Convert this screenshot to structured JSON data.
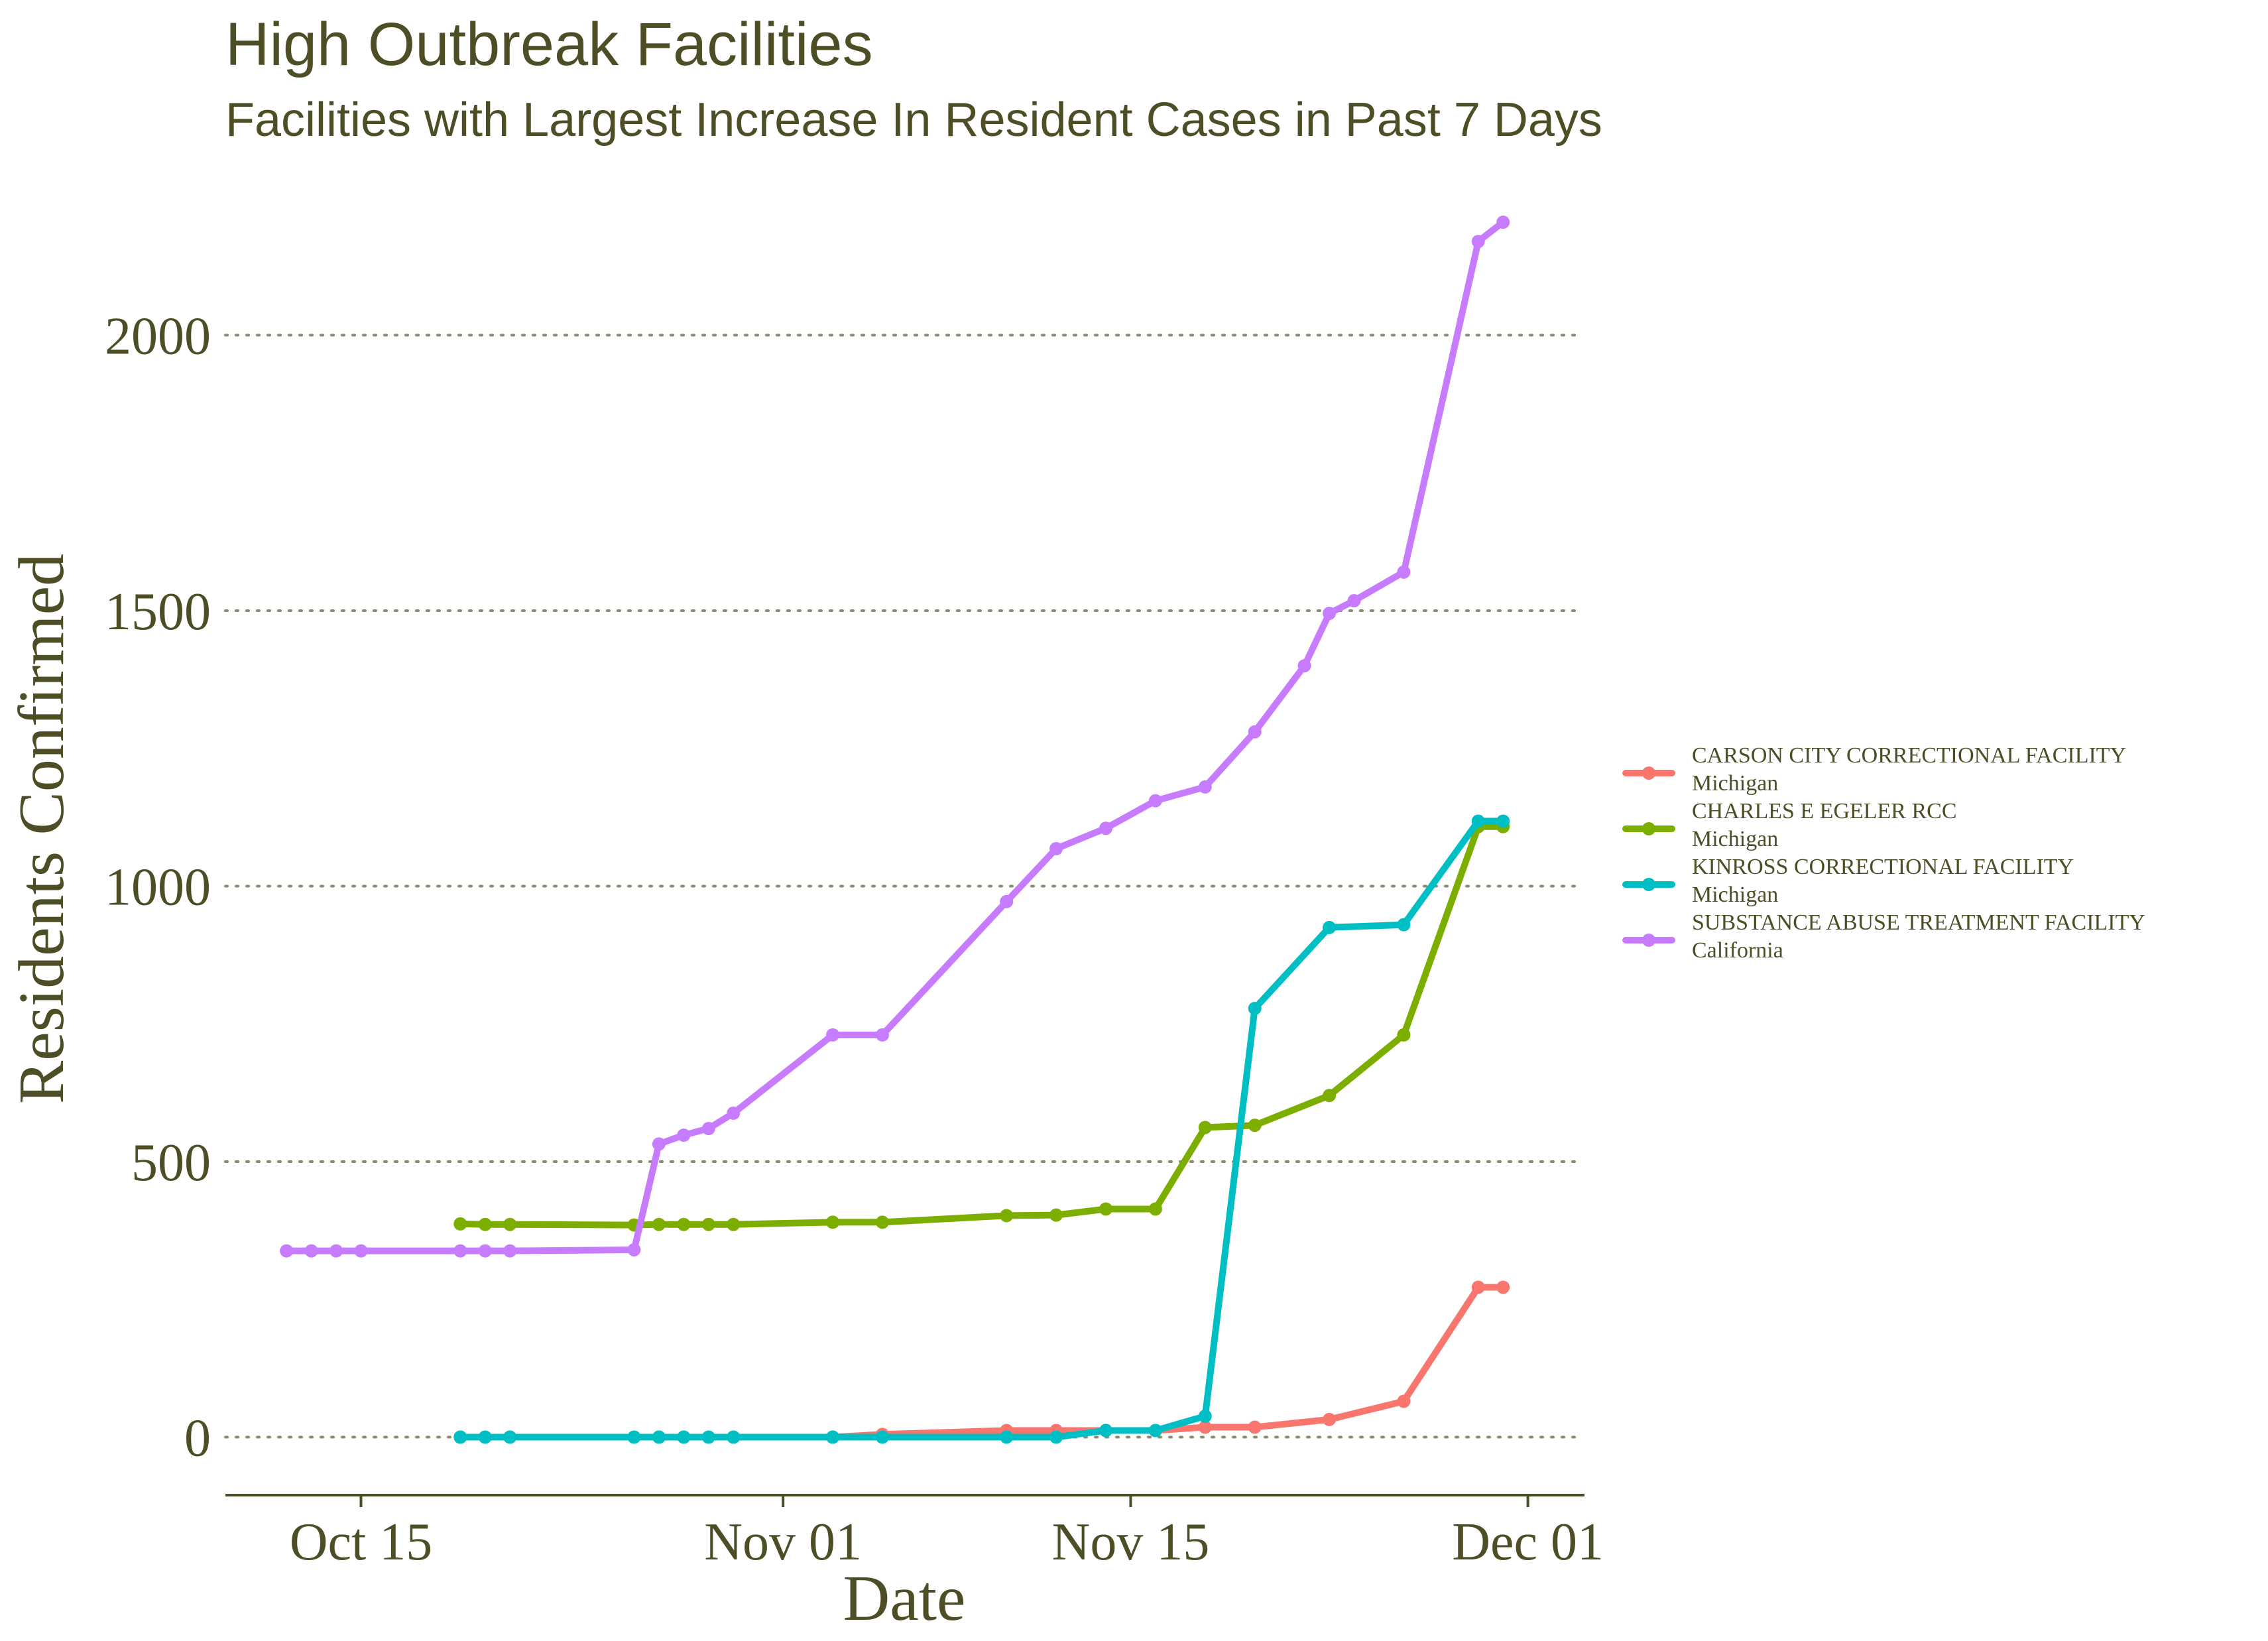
{
  "chart_data": {
    "type": "line",
    "title": "High Outbreak Facilities",
    "subtitle": "Facilities with Largest Increase In Resident Cases in Past 7 Days",
    "xlabel": "Date",
    "ylabel": "Residents Confirmed",
    "xlim_day": [
      2,
      50
    ],
    "ylim": [
      -110,
      2320
    ],
    "x_ticks": [
      {
        "day": 14,
        "label": "Oct 15"
      },
      {
        "day": 31,
        "label": "Nov 01"
      },
      {
        "day": 45,
        "label": "Nov 15"
      },
      {
        "day": 61,
        "label": "Dec 01"
      }
    ],
    "y_ticks": [
      {
        "value": 0,
        "label": "0"
      },
      {
        "value": 500,
        "label": "500"
      },
      {
        "value": 1000,
        "label": "1000"
      },
      {
        "value": 1500,
        "label": "1500"
      },
      {
        "value": 2000,
        "label": "2000"
      }
    ],
    "grid": "horizontal-dotted",
    "legend_position": "right",
    "colors": {
      "text": "#4d4d26",
      "grid": "#8c8c73",
      "axis": "#4d4d26"
    },
    "series": [
      {
        "name": "CARSON CITY CORRECTIONAL FACILITY",
        "state": "Michigan",
        "color": "#f8766d",
        "x": [
          18,
          19,
          20,
          25,
          26,
          27,
          28,
          29,
          33,
          35,
          40,
          42,
          44,
          46,
          48,
          50,
          53,
          56,
          59,
          60
        ],
        "y": [
          0,
          0,
          0,
          0,
          0,
          0,
          0,
          0,
          0,
          5,
          12,
          12,
          12,
          12,
          18,
          18,
          32,
          65,
          272,
          272
        ]
      },
      {
        "name": "CHARLES E EGELER RCC",
        "state": "Michigan",
        "color": "#7cae00",
        "x": [
          18,
          19,
          20,
          25,
          26,
          27,
          28,
          29,
          33,
          35,
          40,
          42,
          44,
          46,
          48,
          50,
          53,
          56,
          59,
          60
        ],
        "y": [
          387,
          386,
          386,
          385,
          386,
          386,
          386,
          386,
          390,
          390,
          402,
          403,
          414,
          414,
          562,
          566,
          620,
          730,
          1108,
          1108
        ]
      },
      {
        "name": "KINROSS CORRECTIONAL FACILITY",
        "state": "Michigan",
        "color": "#00bfc4",
        "x": [
          18,
          19,
          20,
          25,
          26,
          27,
          28,
          29,
          33,
          35,
          40,
          42,
          44,
          46,
          48,
          50,
          53,
          56,
          59,
          60
        ],
        "y": [
          0,
          0,
          0,
          0,
          0,
          0,
          0,
          0,
          0,
          0,
          0,
          0,
          12,
          12,
          38,
          778,
          925,
          930,
          1118,
          1118
        ]
      },
      {
        "name": "SUBSTANCE ABUSE TREATMENT FACILITY",
        "state": "California",
        "color": "#c77cff",
        "x": [
          11,
          12,
          13,
          14,
          18,
          19,
          20,
          25,
          26,
          27,
          28,
          29,
          33,
          35,
          40,
          42,
          44,
          46,
          48,
          50,
          52,
          53,
          54,
          56,
          59,
          60
        ],
        "y": [
          338,
          338,
          338,
          338,
          338,
          338,
          338,
          340,
          532,
          548,
          560,
          588,
          730,
          730,
          972,
          1068,
          1105,
          1155,
          1180,
          1280,
          1400,
          1495,
          1518,
          1570,
          2170,
          2205
        ]
      }
    ]
  }
}
